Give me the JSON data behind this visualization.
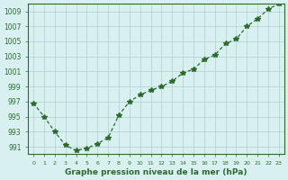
{
  "x": [
    0,
    1,
    2,
    3,
    4,
    5,
    6,
    7,
    8,
    9,
    10,
    11,
    12,
    13,
    14,
    15,
    16,
    17,
    18,
    19,
    20,
    21,
    22,
    23
  ],
  "y": [
    996.8,
    995.0,
    993.0,
    991.2,
    990.5,
    990.8,
    991.4,
    992.2,
    995.2,
    997.0,
    997.9,
    998.5,
    999.0,
    999.7,
    1000.8,
    1001.3,
    1002.6,
    1003.2,
    1004.7,
    1005.3,
    1007.0,
    1008.0,
    1009.3,
    1010.0
  ],
  "line_color": "#2d6a2d",
  "marker": "*",
  "marker_size": 4,
  "xlabel": "Graphe pression niveau de la mer (hPa)",
  "ylim": [
    990,
    1010
  ],
  "yticks": [
    991,
    993,
    995,
    997,
    999,
    1001,
    1003,
    1005,
    1007,
    1009
  ],
  "xticks": [
    0,
    1,
    2,
    3,
    4,
    5,
    6,
    7,
    8,
    9,
    10,
    11,
    12,
    13,
    14,
    15,
    16,
    17,
    18,
    19,
    20,
    21,
    22,
    23
  ],
  "bg_color": "#d8f0f0",
  "grid_color": "#b0d0d0",
  "text_color": "#2d6a2d",
  "xlabel_color": "#2d6a2d",
  "tick_color": "#2d6a2d"
}
